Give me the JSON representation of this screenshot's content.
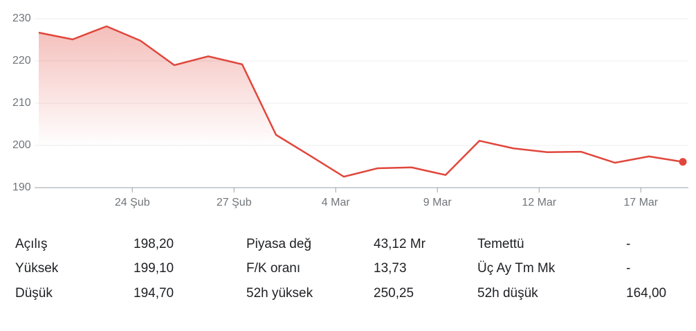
{
  "chart_data": {
    "type": "line",
    "categories": [
      null,
      null,
      null,
      "24 Şub",
      null,
      null,
      "27 Şub",
      null,
      null,
      "4 Mar",
      null,
      null,
      "9 Mar",
      null,
      null,
      "12 Mar",
      null,
      null,
      "17 Mar",
      null
    ],
    "series": [
      {
        "color": "#e0463b",
        "values": [
          226.7,
          225.1,
          228.2,
          224.8,
          219.0,
          221.1,
          219.2,
          202.5,
          197.6,
          192.6,
          194.6,
          194.8,
          193.0,
          201.1,
          199.3,
          198.4,
          198.5,
          195.9,
          197.4,
          196.1
        ]
      }
    ],
    "ylim": [
      190,
      230
    ],
    "yticks": [
      190,
      200,
      210,
      220,
      230
    ],
    "grid": true
  },
  "stats": {
    "rows": [
      [
        "Açılış",
        "198,20",
        "Piyasa değ",
        "43,12 Mr",
        "Temettü",
        "-"
      ],
      [
        "Yüksek",
        "199,10",
        "F/K oranı",
        "13,73",
        "Üç Ay Tm Mk",
        "-"
      ],
      [
        "Düşük",
        "194,70",
        "52h yüksek",
        "250,25",
        "52h düşük",
        "164,00"
      ]
    ]
  }
}
